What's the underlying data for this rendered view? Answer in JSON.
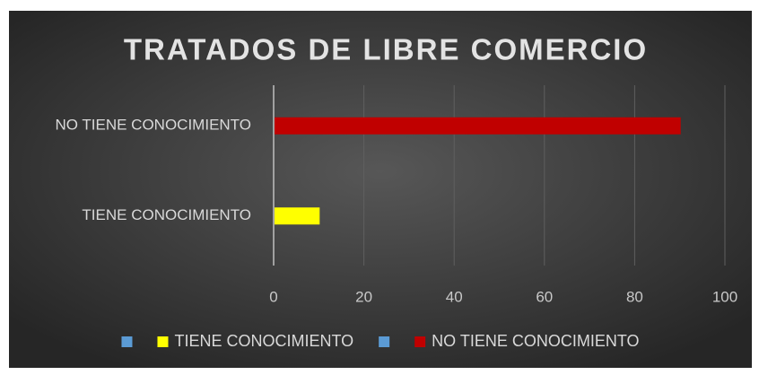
{
  "chart_data": {
    "type": "barh",
    "title": "TRATADOS DE LIBRE COMERCIO",
    "categories": [
      "NO TIENE CONOCIMIENTO",
      "TIENE CONOCIMIENTO"
    ],
    "series": [
      {
        "color": "#5b9bd5",
        "values": [
          null,
          null
        ]
      },
      {
        "name": "TIENE CONOCIMIENTO",
        "color": "#ffff00",
        "values": [
          null,
          10
        ]
      },
      {
        "color": "#5b9bd5",
        "values": [
          null,
          null
        ]
      },
      {
        "name": "NO TIENE CONOCIMIENTO",
        "color": "#c00000",
        "values": [
          90,
          null
        ]
      }
    ],
    "xlim": [
      0,
      100
    ],
    "xticks": [
      0,
      20,
      40,
      60,
      80,
      100
    ],
    "grid": true,
    "legend": "bottom"
  }
}
